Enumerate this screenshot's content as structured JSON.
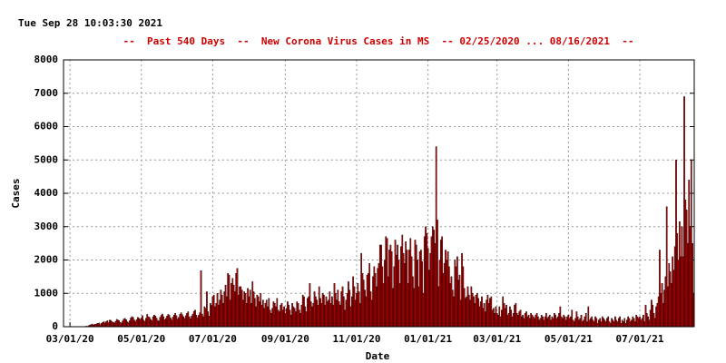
{
  "chart_data": {
    "type": "bar",
    "timestamp": "Tue Sep 28 10:03:30 2021",
    "title": "--  Past 540 Days  --  New Corona Virus Cases in MS  -- 02/25/2020 ... 08/16/2021  --",
    "x_label": "Date",
    "y_label": "Cases",
    "color": "#c00000",
    "edge_color": "#000000",
    "grid": true,
    "ylim": [
      0,
      8000
    ],
    "yticks": [
      0,
      1000,
      2000,
      3000,
      4000,
      5000,
      6000,
      7000,
      8000
    ],
    "categories": [
      null,
      null,
      null,
      null,
      null,
      "03/01/20",
      null,
      null,
      null,
      null,
      null,
      null,
      null,
      null,
      null,
      null,
      null,
      null,
      null,
      null,
      null,
      null,
      null,
      null,
      null,
      null,
      null,
      null,
      null,
      null,
      null,
      null,
      null,
      null,
      null,
      null,
      null,
      null,
      null,
      null,
      null,
      null,
      null,
      null,
      null,
      null,
      null,
      null,
      null,
      null,
      null,
      null,
      null,
      null,
      null,
      null,
      null,
      null,
      null,
      null,
      null,
      null,
      null,
      null,
      null,
      null,
      "05/01/20",
      null,
      null,
      null,
      null,
      null,
      null,
      null,
      null,
      null,
      null,
      null,
      null,
      null,
      null,
      null,
      null,
      null,
      null,
      null,
      null,
      null,
      null,
      null,
      null,
      null,
      null,
      null,
      null,
      null,
      null,
      null,
      null,
      null,
      null,
      null,
      null,
      null,
      null,
      null,
      null,
      null,
      null,
      null,
      null,
      null,
      null,
      null,
      null,
      null,
      null,
      null,
      null,
      null,
      null,
      null,
      null,
      null,
      null,
      null,
      null,
      "07/01/20",
      null,
      null,
      null,
      null,
      null,
      null,
      null,
      null,
      null,
      null,
      null,
      null,
      null,
      null,
      null,
      null,
      null,
      null,
      null,
      null,
      null,
      null,
      null,
      null,
      null,
      null,
      null,
      null,
      null,
      null,
      null,
      null,
      null,
      null,
      null,
      null,
      null,
      null,
      null,
      null,
      null,
      null,
      null,
      null,
      null,
      null,
      null,
      null,
      null,
      null,
      null,
      null,
      null,
      null,
      null,
      null,
      null,
      null,
      null,
      null,
      null,
      "09/01/20",
      null,
      null,
      null,
      null,
      null,
      null,
      null,
      null,
      null,
      null,
      null,
      null,
      null,
      null,
      null,
      null,
      null,
      null,
      null,
      null,
      null,
      null,
      null,
      null,
      null,
      null,
      null,
      null,
      null,
      null,
      null,
      null,
      null,
      null,
      null,
      null,
      null,
      null,
      null,
      null,
      null,
      null,
      null,
      null,
      null,
      null,
      null,
      null,
      null,
      null,
      null,
      null,
      null,
      null,
      null,
      null,
      null,
      null,
      null,
      null,
      "11/01/20",
      null,
      null,
      null,
      null,
      null,
      null,
      null,
      null,
      null,
      null,
      null,
      null,
      null,
      null,
      null,
      null,
      null,
      null,
      null,
      null,
      null,
      null,
      null,
      null,
      null,
      null,
      null,
      null,
      null,
      null,
      null,
      null,
      null,
      null,
      null,
      null,
      null,
      null,
      null,
      null,
      null,
      null,
      null,
      null,
      null,
      null,
      null,
      null,
      null,
      null,
      null,
      null,
      null,
      null,
      null,
      null,
      null,
      null,
      null,
      null,
      "01/01/21",
      null,
      null,
      null,
      null,
      null,
      null,
      null,
      null,
      null,
      null,
      null,
      null,
      null,
      null,
      null,
      null,
      null,
      null,
      null,
      null,
      null,
      null,
      null,
      null,
      null,
      null,
      null,
      null,
      null,
      null,
      null,
      null,
      null,
      null,
      null,
      null,
      null,
      null,
      null,
      null,
      null,
      null,
      null,
      null,
      null,
      null,
      null,
      null,
      null,
      null,
      null,
      null,
      null,
      null,
      null,
      null,
      null,
      null,
      "03/01/21",
      null,
      null,
      null,
      null,
      null,
      null,
      null,
      null,
      null,
      null,
      null,
      null,
      null,
      null,
      null,
      null,
      null,
      null,
      null,
      null,
      null,
      null,
      null,
      null,
      null,
      null,
      null,
      null,
      null,
      null,
      null,
      null,
      null,
      null,
      null,
      null,
      null,
      null,
      null,
      null,
      null,
      null,
      null,
      null,
      null,
      null,
      null,
      null,
      null,
      null,
      null,
      null,
      null,
      null,
      null,
      null,
      null,
      null,
      null,
      null,
      "05/01/21",
      null,
      null,
      null,
      null,
      null,
      null,
      null,
      null,
      null,
      null,
      null,
      null,
      null,
      null,
      null,
      null,
      null,
      null,
      null,
      null,
      null,
      null,
      null,
      null,
      null,
      null,
      null,
      null,
      null,
      null,
      null,
      null,
      null,
      null,
      null,
      null,
      null,
      null,
      null,
      null,
      null,
      null,
      null,
      null,
      null,
      null,
      null,
      null,
      null,
      null,
      null,
      null,
      null,
      null,
      null,
      null,
      null,
      null,
      null,
      null,
      "07/01/21",
      null,
      null,
      null,
      null,
      null,
      null,
      null,
      null,
      null,
      null,
      null,
      null,
      null,
      null,
      null,
      null,
      null,
      null,
      null,
      null,
      null,
      null,
      null,
      null,
      null,
      null,
      null,
      null,
      null,
      null,
      null,
      null,
      null,
      null,
      null,
      null,
      null,
      null,
      null,
      null,
      null,
      null,
      null,
      null,
      null,
      null
    ],
    "values": [
      0,
      0,
      0,
      0,
      0,
      0,
      0,
      0,
      0,
      0,
      0,
      0,
      0,
      0,
      0,
      1,
      5,
      4,
      10,
      16,
      13,
      30,
      50,
      60,
      80,
      50,
      70,
      75,
      90,
      100,
      110,
      60,
      100,
      130,
      150,
      110,
      150,
      180,
      120,
      200,
      190,
      150,
      130,
      110,
      160,
      220,
      200,
      180,
      130,
      100,
      170,
      230,
      250,
      210,
      150,
      120,
      180,
      260,
      300,
      280,
      200,
      150,
      210,
      280,
      250,
      220,
      260,
      330,
      200,
      160,
      250,
      370,
      300,
      280,
      220,
      180,
      300,
      350,
      320,
      260,
      190,
      170,
      280,
      340,
      380,
      300,
      210,
      250,
      320,
      370,
      340,
      260,
      200,
      290,
      350,
      400,
      330,
      230,
      280,
      370,
      420,
      360,
      300,
      250,
      330,
      400,
      450,
      300,
      240,
      320,
      380,
      460,
      500,
      350,
      270,
      340,
      420,
      1680,
      380,
      300,
      600,
      550,
      1050,
      450,
      320,
      700,
      640,
      900,
      950,
      600,
      700,
      1000,
      650,
      800,
      1100,
      950,
      700,
      1050,
      1250,
      900,
      1600,
      1550,
      800,
      1300,
      1450,
      1250,
      1050,
      1600,
      1750,
      950,
      1200,
      1200,
      1100,
      800,
      1050,
      1000,
      700,
      1150,
      900,
      1100,
      700,
      1350,
      1050,
      850,
      600,
      950,
      900,
      750,
      1000,
      650,
      800,
      550,
      700,
      800,
      600,
      850,
      500,
      400,
      550,
      750,
      700,
      600,
      850,
      500,
      450,
      650,
      700,
      500,
      600,
      400,
      550,
      750,
      650,
      500,
      350,
      700,
      600,
      550,
      450,
      750,
      700,
      500,
      400,
      650,
      950,
      900,
      600,
      450,
      850,
      900,
      1300,
      750,
      600,
      700,
      1050,
      900,
      800,
      650,
      1200,
      850,
      700,
      1000,
      950,
      650,
      900,
      750,
      800,
      1050,
      700,
      900,
      650,
      1300,
      1000,
      800,
      1100,
      750,
      650,
      1050,
      1200,
      900,
      500,
      800,
      1000,
      1350,
      1100,
      600,
      900,
      1500,
      1200,
      800,
      1000,
      1300,
      1050,
      700,
      2200,
      1600,
      1400,
      1100,
      900,
      1550,
      1600,
      1900,
      1050,
      800,
      1500,
      1800,
      1600,
      1200,
      1750,
      1900,
      2450,
      2450,
      1800,
      1300,
      2000,
      2700,
      2650,
      1500,
      2300,
      2450,
      2250,
      1150,
      1800,
      2600,
      2150,
      2450,
      2000,
      1300,
      2400,
      2750,
      2200,
      1900,
      2550,
      2300,
      1300,
      2300,
      2650,
      2100,
      1500,
      1150,
      2600,
      2450,
      2000,
      1200,
      2250,
      2300,
      1950,
      1000,
      2700,
      3000,
      2800,
      2350,
      1700,
      2200,
      2700,
      3000,
      2900,
      2500,
      5400,
      3200,
      1200,
      2000,
      2600,
      2700,
      1600,
      1900,
      2300,
      2000,
      2250,
      1800,
      1300,
      1500,
      1100,
      900,
      2000,
      1800,
      2100,
      1400,
      1550,
      800,
      2200,
      1800,
      1150,
      850,
      900,
      1200,
      950,
      800,
      1200,
      1000,
      900,
      700,
      950,
      1000,
      850,
      600,
      750,
      900,
      550,
      700,
      450,
      800,
      950,
      700,
      850,
      900,
      500,
      550,
      400,
      600,
      400,
      350,
      600,
      300,
      500,
      900,
      700,
      550,
      650,
      350,
      400,
      600,
      500,
      300,
      400,
      650,
      700,
      400,
      350,
      450,
      500,
      300,
      350,
      250,
      400,
      450,
      300,
      350,
      250,
      400,
      350,
      300,
      250,
      350,
      400,
      300,
      200,
      250,
      350,
      300,
      200,
      300,
      400,
      250,
      300,
      350,
      200,
      300,
      250,
      400,
      350,
      250,
      300,
      400,
      600,
      300,
      250,
      350,
      300,
      200,
      300,
      350,
      250,
      300,
      500,
      200,
      150,
      250,
      450,
      300,
      200,
      250,
      350,
      150,
      200,
      300,
      400,
      150,
      600,
      200,
      250,
      300,
      200,
      150,
      300,
      250,
      100,
      200,
      250,
      150,
      300,
      250,
      200,
      150,
      250,
      300,
      150,
      100,
      250,
      200,
      150,
      300,
      200,
      150,
      250,
      300,
      100,
      200,
      150,
      250,
      100,
      200,
      300,
      250,
      150,
      200,
      300,
      250,
      150,
      350,
      300,
      250,
      300,
      200,
      250,
      350,
      150,
      650,
      400,
      300,
      200,
      500,
      800,
      650,
      400,
      250,
      600,
      700,
      900,
      2300,
      1000,
      1300,
      700,
      1100,
      1500,
      3600,
      1200,
      1900,
      1650,
      1300,
      2100,
      1700,
      2400,
      5000,
      2800,
      2000,
      3150,
      2100,
      3000,
      2100,
      6900,
      3800,
      3500,
      2500,
      4400,
      3000,
      5000,
      2500,
      1000
    ]
  }
}
